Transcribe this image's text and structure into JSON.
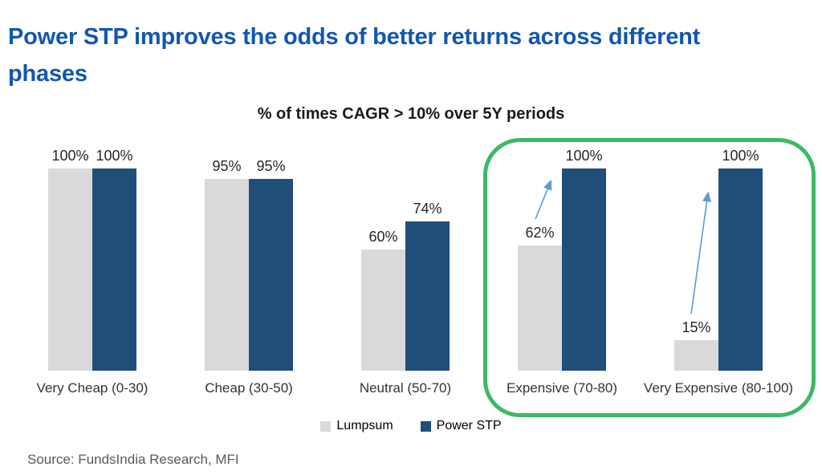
{
  "page": {
    "title": "Power STP improves the odds of better returns across different phases",
    "source": "Source: FundsIndia Research, MFI"
  },
  "chart_data": {
    "type": "bar",
    "title": "% of times CAGR > 10% over 5Y periods",
    "categories": [
      "Very Cheap (0-30)",
      "Cheap (30-50)",
      "Neutral (50-70)",
      "Expensive (70-80)",
      "Very Expensive (80-100)"
    ],
    "series": [
      {
        "name": "Lumpsum",
        "color": "#D9D9D9",
        "values": [
          100,
          95,
          60,
          62,
          15
        ]
      },
      {
        "name": "Power STP",
        "color": "#1F4E79",
        "values": [
          100,
          95,
          74,
          100,
          100
        ]
      }
    ],
    "value_suffix": "%",
    "ylim": [
      0,
      100
    ],
    "grid": false,
    "legend_position": "bottom-center",
    "highlight_box": {
      "categories": [
        "Expensive (70-80)",
        "Very Expensive (80-100)"
      ],
      "color": "#3CB964"
    },
    "annotations": [
      {
        "type": "arrow",
        "category": "Expensive (70-80)",
        "from_series": "Lumpsum",
        "to_series": "Power STP",
        "color": "#5B9BD5"
      },
      {
        "type": "arrow",
        "category": "Very Expensive (80-100)",
        "from_series": "Lumpsum",
        "to_series": "Power STP",
        "color": "#5B9BD5"
      }
    ]
  },
  "colors": {
    "page_title": "#1157B0",
    "chart_title": "#1A1A1A",
    "value_label": "#262626",
    "category_label": "#333333",
    "source_text": "#595959",
    "background": "#FFFFFF"
  }
}
